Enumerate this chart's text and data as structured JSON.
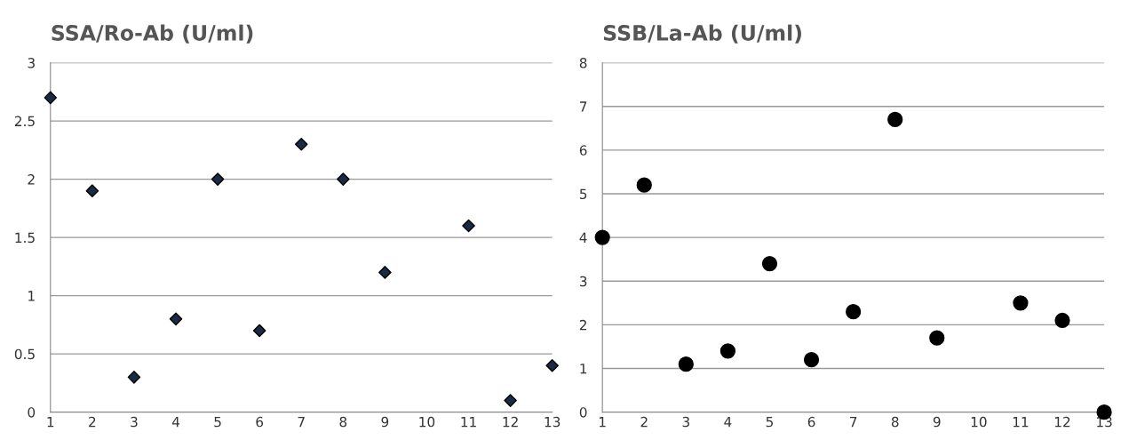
{
  "chart_data": [
    {
      "type": "scatter",
      "title": "SSA/Ro-Ab (U/ml)",
      "x": [
        1,
        2,
        3,
        4,
        5,
        6,
        7,
        8,
        9,
        11,
        12,
        13
      ],
      "values": [
        2.7,
        1.9,
        0.3,
        0.8,
        2.0,
        0.7,
        2.3,
        2.0,
        1.2,
        1.6,
        0.1,
        0.4
      ],
      "color": "#1b2a44",
      "marker": "diamond",
      "xlim": [
        1,
        13
      ],
      "xticks": [
        1,
        2,
        3,
        4,
        5,
        6,
        7,
        8,
        9,
        10,
        11,
        12,
        13
      ],
      "ylim": [
        0,
        3
      ],
      "yticks": [
        0,
        0.5,
        1,
        1.5,
        2,
        2.5,
        3
      ],
      "grid": "y",
      "legend": false
    },
    {
      "type": "scatter",
      "title": "SSB/La-Ab (U/ml)",
      "x": [
        1,
        2,
        3,
        4,
        5,
        6,
        7,
        8,
        9,
        11,
        12,
        13
      ],
      "values": [
        4.0,
        5.2,
        1.1,
        1.4,
        3.4,
        1.2,
        2.3,
        6.7,
        1.7,
        2.5,
        2.1,
        0
      ],
      "color": "#000000",
      "marker": "circle",
      "xlim": [
        1,
        13
      ],
      "xticks": [
        1,
        2,
        3,
        4,
        5,
        6,
        7,
        8,
        9,
        10,
        11,
        12,
        13
      ],
      "ylim": [
        0,
        8
      ],
      "yticks": [
        0,
        1,
        2,
        3,
        4,
        5,
        6,
        7,
        8
      ],
      "grid": "y",
      "legend": false
    }
  ]
}
